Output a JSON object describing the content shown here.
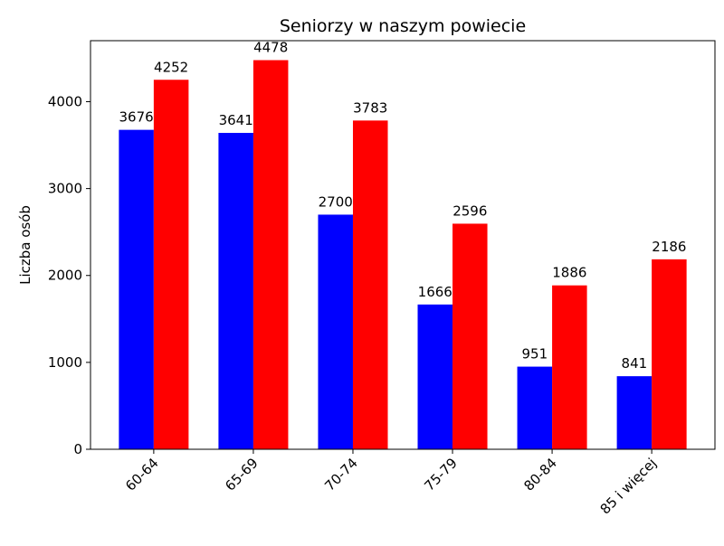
{
  "chart_data": {
    "type": "grouped_bar",
    "title": "Seniorzy w naszym powiecie",
    "y_label": "Liczba osób",
    "categories": [
      "60-64",
      "65-69",
      "70-74",
      "75-79",
      "80-84",
      "85 i więcej"
    ],
    "series": [
      {
        "color": "#0000ff",
        "values": [
          3676,
          3641,
          2700,
          1666,
          951,
          841
        ]
      },
      {
        "color": "#ff0000",
        "values": [
          4252,
          4478,
          3783,
          2596,
          1886,
          2186
        ]
      }
    ],
    "ylim": [
      0,
      4702
    ],
    "yticks": [
      0,
      1000,
      2000,
      3000,
      4000
    ],
    "grid": false
  }
}
